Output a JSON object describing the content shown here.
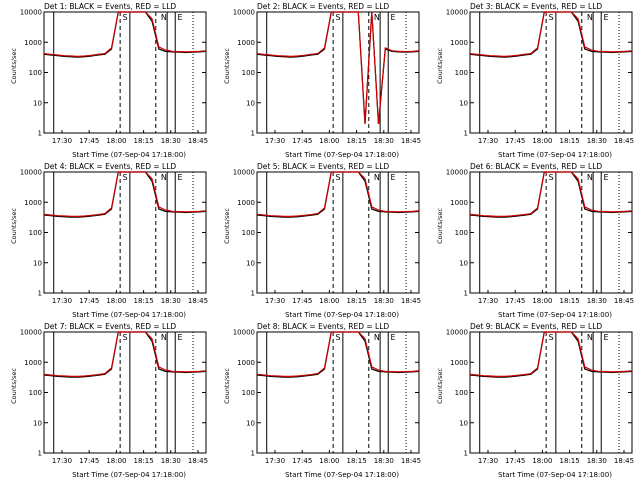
{
  "chart_data": [
    {
      "type": "line",
      "title": "Det 1: BLACK = Events, RED = LLD",
      "xlabel": "Start Time (07-Sep-04 17:18:00)",
      "ylabel": "Counts/sec",
      "yscale": "log",
      "ylim": [
        1,
        10000
      ],
      "x_ticks": [
        "17:30",
        "17:45",
        "18:00",
        "18:15",
        "18:30",
        "18:45"
      ],
      "y_ticks": [
        "1",
        "10",
        "100",
        "1000",
        "10000"
      ],
      "series": [
        {
          "color": "#000000",
          "values": [
            400,
            380,
            360,
            340,
            330,
            320,
            330,
            350,
            380,
            400,
            600,
            10000,
            10000,
            10000,
            10000,
            10000,
            5000,
            600,
            500,
            480,
            470,
            460,
            470,
            480,
            500
          ]
        },
        {
          "color": "#cc0000",
          "values": [
            420,
            400,
            380,
            360,
            350,
            340,
            350,
            370,
            400,
            420,
            650,
            10000,
            10000,
            10000,
            10000,
            10000,
            6000,
            700,
            550,
            500,
            490,
            480,
            490,
            500,
            520
          ]
        }
      ],
      "markers": [
        "S",
        "N",
        "E"
      ]
    },
    {
      "type": "line",
      "title": "Det 2: BLACK = Events, RED = LLD",
      "xlabel": "Start Time (07-Sep-04 17:18:00)",
      "ylabel": "Counts/sec",
      "yscale": "log",
      "ylim": [
        1,
        10000
      ],
      "x_ticks": [
        "17:30",
        "17:45",
        "18:00",
        "18:15",
        "18:30",
        "18:45"
      ],
      "y_ticks": [
        "1",
        "10",
        "100",
        "1000",
        "10000"
      ],
      "series": [
        {
          "color": "#000000",
          "values": [
            400,
            380,
            360,
            340,
            330,
            320,
            330,
            350,
            380,
            400,
            600,
            10000,
            10000,
            10000,
            10000,
            10000,
            2,
            10000,
            2,
            600,
            500,
            480,
            470,
            480,
            500
          ]
        },
        {
          "color": "#cc0000",
          "values": [
            420,
            400,
            380,
            360,
            350,
            340,
            350,
            370,
            400,
            420,
            650,
            10000,
            10000,
            10000,
            10000,
            10000,
            2,
            10000,
            2,
            650,
            520,
            500,
            490,
            500,
            520
          ]
        }
      ],
      "markers": [
        "S",
        "N",
        "E"
      ]
    },
    {
      "type": "line",
      "title": "Det 3: BLACK = Events, RED = LLD",
      "xlabel": "Start Time (07-Sep-04 17:18:00)",
      "ylabel": "Counts/sec",
      "yscale": "log",
      "ylim": [
        1,
        10000
      ],
      "x_ticks": [
        "17:30",
        "17:45",
        "18:00",
        "18:15",
        "18:30",
        "18:45"
      ],
      "y_ticks": [
        "1",
        "10",
        "100",
        "1000",
        "10000"
      ],
      "series": [
        {
          "color": "#000000",
          "values": [
            400,
            380,
            360,
            340,
            330,
            320,
            330,
            350,
            380,
            400,
            600,
            10000,
            10000,
            10000,
            10000,
            10000,
            5000,
            600,
            500,
            480,
            470,
            460,
            470,
            480,
            500
          ]
        },
        {
          "color": "#cc0000",
          "values": [
            420,
            400,
            380,
            360,
            350,
            340,
            350,
            370,
            400,
            420,
            650,
            10000,
            10000,
            10000,
            10000,
            10000,
            6000,
            700,
            550,
            500,
            490,
            480,
            490,
            500,
            520
          ]
        }
      ],
      "markers": [
        "S",
        "N",
        "E"
      ]
    },
    {
      "type": "line",
      "title": "Det 4: BLACK = Events, RED = LLD",
      "xlabel": "Start Time (07-Sep-04 17:18:00)",
      "ylabel": "Counts/sec",
      "yscale": "log",
      "ylim": [
        1,
        10000
      ],
      "x_ticks": [
        "17:30",
        "17:45",
        "18:00",
        "18:15",
        "18:30",
        "18:45"
      ],
      "y_ticks": [
        "1",
        "10",
        "100",
        "1000",
        "10000"
      ],
      "series": [
        {
          "color": "#000000",
          "values": [
            380,
            360,
            340,
            330,
            320,
            320,
            330,
            350,
            370,
            400,
            600,
            10000,
            10000,
            10000,
            10000,
            10000,
            5000,
            600,
            500,
            480,
            470,
            460,
            470,
            480,
            500
          ]
        },
        {
          "color": "#cc0000",
          "values": [
            400,
            380,
            360,
            350,
            340,
            340,
            350,
            370,
            390,
            420,
            650,
            10000,
            10000,
            10000,
            10000,
            10000,
            6000,
            700,
            550,
            500,
            490,
            480,
            490,
            500,
            520
          ]
        }
      ],
      "markers": [
        "S",
        "N",
        "E"
      ]
    },
    {
      "type": "line",
      "title": "Det 5: BLACK = Events, RED = LLD",
      "xlabel": "Start Time (07-Sep-04 17:18:00)",
      "ylabel": "Counts/sec",
      "yscale": "log",
      "ylim": [
        1,
        10000
      ],
      "x_ticks": [
        "17:30",
        "17:45",
        "18:00",
        "18:15",
        "18:30",
        "18:45"
      ],
      "y_ticks": [
        "1",
        "10",
        "100",
        "1000",
        "10000"
      ],
      "series": [
        {
          "color": "#000000",
          "values": [
            380,
            360,
            340,
            330,
            320,
            320,
            330,
            350,
            370,
            400,
            600,
            10000,
            10000,
            10000,
            10000,
            10000,
            5000,
            600,
            500,
            480,
            470,
            460,
            470,
            480,
            500
          ]
        },
        {
          "color": "#cc0000",
          "values": [
            400,
            380,
            360,
            350,
            340,
            340,
            350,
            370,
            390,
            420,
            650,
            10000,
            10000,
            10000,
            10000,
            10000,
            6000,
            700,
            550,
            500,
            490,
            480,
            490,
            500,
            520
          ]
        }
      ],
      "markers": [
        "S",
        "N",
        "E"
      ]
    },
    {
      "type": "line",
      "title": "Det 6: BLACK = Events, RED = LLD",
      "xlabel": "Start Time (07-Sep-04 17:18:00)",
      "ylabel": "Counts/sec",
      "yscale": "log",
      "ylim": [
        1,
        10000
      ],
      "x_ticks": [
        "17:30",
        "17:45",
        "18:00",
        "18:15",
        "18:30",
        "18:45"
      ],
      "y_ticks": [
        "1",
        "10",
        "100",
        "1000",
        "10000"
      ],
      "series": [
        {
          "color": "#000000",
          "values": [
            380,
            360,
            340,
            330,
            320,
            320,
            330,
            350,
            370,
            400,
            600,
            10000,
            10000,
            10000,
            10000,
            10000,
            5000,
            600,
            500,
            480,
            470,
            460,
            470,
            480,
            500
          ]
        },
        {
          "color": "#cc0000",
          "values": [
            400,
            380,
            360,
            350,
            340,
            340,
            350,
            370,
            390,
            420,
            650,
            10000,
            10000,
            10000,
            10000,
            10000,
            6000,
            700,
            550,
            500,
            490,
            480,
            490,
            500,
            520
          ]
        }
      ],
      "markers": [
        "S",
        "N",
        "E"
      ]
    },
    {
      "type": "line",
      "title": "Det 7: BLACK = Events, RED = LLD",
      "xlabel": "Start Time (07-Sep-04 17:18:00)",
      "ylabel": "Counts/sec",
      "yscale": "log",
      "ylim": [
        1,
        10000
      ],
      "x_ticks": [
        "17:30",
        "17:45",
        "18:00",
        "18:15",
        "18:30",
        "18:45"
      ],
      "y_ticks": [
        "1",
        "10",
        "100",
        "1000",
        "10000"
      ],
      "series": [
        {
          "color": "#000000",
          "values": [
            380,
            360,
            340,
            330,
            320,
            320,
            330,
            350,
            370,
            400,
            600,
            10000,
            10000,
            10000,
            10000,
            10000,
            5000,
            600,
            500,
            480,
            470,
            460,
            470,
            480,
            500
          ]
        },
        {
          "color": "#cc0000",
          "values": [
            400,
            380,
            360,
            350,
            340,
            340,
            350,
            370,
            390,
            420,
            650,
            10000,
            10000,
            10000,
            10000,
            10000,
            6000,
            700,
            550,
            500,
            490,
            480,
            490,
            500,
            520
          ]
        }
      ],
      "markers": [
        "S",
        "N",
        "E"
      ]
    },
    {
      "type": "line",
      "title": "Det 8: BLACK = Events, RED = LLD",
      "xlabel": "Start Time (07-Sep-04 17:18:00)",
      "ylabel": "Counts/sec",
      "yscale": "log",
      "ylim": [
        1,
        10000
      ],
      "x_ticks": [
        "17:30",
        "17:45",
        "18:00",
        "18:15",
        "18:30",
        "18:45"
      ],
      "y_ticks": [
        "1",
        "10",
        "100",
        "1000",
        "10000"
      ],
      "series": [
        {
          "color": "#000000",
          "values": [
            380,
            360,
            340,
            330,
            320,
            320,
            330,
            350,
            370,
            400,
            600,
            10000,
            10000,
            10000,
            10000,
            10000,
            5000,
            600,
            500,
            480,
            470,
            460,
            470,
            480,
            500
          ]
        },
        {
          "color": "#cc0000",
          "values": [
            400,
            380,
            360,
            350,
            340,
            340,
            350,
            370,
            390,
            420,
            650,
            10000,
            10000,
            10000,
            10000,
            10000,
            6000,
            700,
            550,
            500,
            490,
            480,
            490,
            500,
            520
          ]
        }
      ],
      "markers": [
        "S",
        "N",
        "E"
      ]
    },
    {
      "type": "line",
      "title": "Det 9: BLACK = Events, RED = LLD",
      "xlabel": "Start Time (07-Sep-04 17:18:00)",
      "ylabel": "Counts/sec",
      "yscale": "log",
      "ylim": [
        1,
        10000
      ],
      "x_ticks": [
        "17:30",
        "17:45",
        "18:00",
        "18:15",
        "18:30",
        "18:45"
      ],
      "y_ticks": [
        "1",
        "10",
        "100",
        "1000",
        "10000"
      ],
      "series": [
        {
          "color": "#000000",
          "values": [
            380,
            360,
            340,
            330,
            320,
            320,
            330,
            350,
            370,
            400,
            600,
            10000,
            10000,
            10000,
            10000,
            10000,
            5000,
            600,
            500,
            480,
            470,
            460,
            470,
            480,
            500
          ]
        },
        {
          "color": "#cc0000",
          "values": [
            400,
            380,
            360,
            350,
            340,
            340,
            350,
            370,
            390,
            420,
            650,
            10000,
            10000,
            10000,
            10000,
            10000,
            6000,
            700,
            550,
            500,
            490,
            480,
            490,
            500,
            520
          ]
        }
      ],
      "markers": [
        "S",
        "N",
        "E"
      ]
    }
  ]
}
